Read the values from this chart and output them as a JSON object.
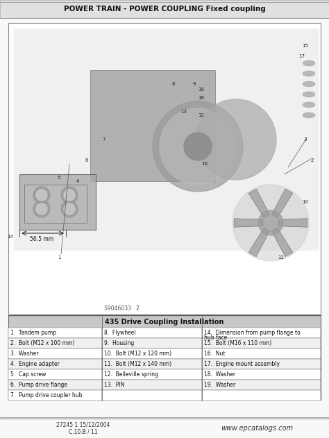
{
  "title": "POWER TRAIN - POWER COUPLING Fixed coupling",
  "table_title": "435 Drive Coupling Installation",
  "bg_color": "#ffffff",
  "title_fontsize": 8,
  "table_header_bg": "#c8c8c8",
  "table_row_bg_alt": "#f0f0f0",
  "table_row_bg": "#ffffff",
  "table_border_color": "#555555",
  "footer_left": "27245 1 15/12/2004\nC.10.B / 11",
  "footer_right": "www.epcatalogs.com",
  "diagram_label": "59046033   2",
  "rows": [
    [
      "1.  Tandem pump",
      "8.  Flywheel",
      "14.  Dimension from pump flange to\nhub face"
    ],
    [
      "2.  Bolt (M12 x 100 mm)",
      "9.  Housing",
      "15.  Bolt (M16 x 110 mm)"
    ],
    [
      "3.  Washer",
      "10.  Bolt (M12 x 120 mm)",
      "16.  Nut"
    ],
    [
      "4.  Engine adapter",
      "11.  Bolt (M12 x 140 mm)",
      "17.  Engine mount assembly"
    ],
    [
      "5.  Cap screw",
      "12.  Belleville spring",
      "18.  Washer"
    ],
    [
      "6.  Pump drive flange",
      "13.  PIN",
      "19.  Washer"
    ],
    [
      "7.  Pump drive coupler hub",
      "",
      ""
    ]
  ],
  "image_area_color": "#f5f5f5",
  "outer_border_color": "#333333",
  "line_color": "#888888",
  "diagram_bg": "#e8e8e8"
}
